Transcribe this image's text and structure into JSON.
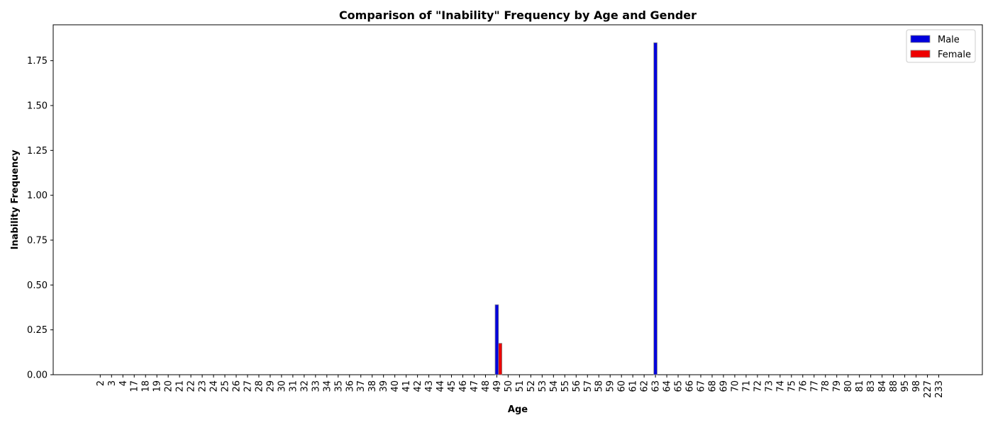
{
  "chart_data": {
    "type": "bar",
    "title": "Comparison of \"Inability\" Frequency by Age and Gender",
    "xlabel": "Age",
    "ylabel": "Inability Frequency",
    "ylim": [
      0,
      1.95
    ],
    "yticks": [
      "0.00",
      "0.25",
      "0.50",
      "0.75",
      "1.00",
      "1.25",
      "1.50",
      "1.75"
    ],
    "ytick_values": [
      0,
      0.25,
      0.5,
      0.75,
      1.0,
      1.25,
      1.5,
      1.75
    ],
    "grid": false,
    "legend_position": "top-right",
    "categories": [
      "2",
      "3",
      "4",
      "17",
      "18",
      "19",
      "20",
      "21",
      "22",
      "23",
      "24",
      "25",
      "26",
      "27",
      "28",
      "29",
      "30",
      "31",
      "32",
      "33",
      "34",
      "35",
      "36",
      "37",
      "38",
      "39",
      "40",
      "41",
      "42",
      "43",
      "44",
      "45",
      "46",
      "47",
      "48",
      "49",
      "50",
      "51",
      "52",
      "53",
      "54",
      "55",
      "56",
      "57",
      "58",
      "59",
      "60",
      "61",
      "62",
      "63",
      "64",
      "65",
      "66",
      "67",
      "68",
      "69",
      "70",
      "71",
      "72",
      "73",
      "74",
      "75",
      "76",
      "77",
      "78",
      "79",
      "80",
      "81",
      "83",
      "84",
      "88",
      "95",
      "98",
      "227",
      "233"
    ],
    "series": [
      {
        "name": "Male",
        "color": "#0000dd",
        "values": [
          0,
          0,
          0,
          0,
          0,
          0,
          0,
          0,
          0,
          0,
          0,
          0,
          0,
          0,
          0,
          0,
          0,
          0,
          0,
          0,
          0,
          0,
          0,
          0,
          0,
          0,
          0,
          0,
          0,
          0,
          0,
          0,
          0,
          0,
          0,
          0.39,
          0,
          0,
          0,
          0,
          0,
          0,
          0,
          0,
          0,
          0,
          0,
          0,
          0,
          1.85,
          0,
          0,
          0,
          0,
          0,
          0,
          0,
          0,
          0,
          0,
          0,
          0,
          0,
          0,
          0,
          0,
          0,
          0,
          0,
          0,
          0,
          0,
          0,
          0,
          0
        ]
      },
      {
        "name": "Female",
        "color": "#ee0000",
        "values": [
          0,
          0,
          0,
          0,
          0,
          0,
          0,
          0,
          0,
          0,
          0,
          0,
          0,
          0,
          0,
          0,
          0,
          0,
          0,
          0,
          0,
          0,
          0,
          0,
          0,
          0,
          0,
          0,
          0,
          0,
          0,
          0,
          0,
          0,
          0,
          0.175,
          0,
          0,
          0,
          0,
          0,
          0,
          0,
          0,
          0,
          0,
          0,
          0,
          0,
          0,
          0,
          0,
          0,
          0,
          0,
          0,
          0,
          0,
          0,
          0,
          0,
          0,
          0,
          0,
          0,
          0,
          0,
          0,
          0,
          0,
          0,
          0,
          0,
          0,
          0
        ]
      }
    ]
  }
}
